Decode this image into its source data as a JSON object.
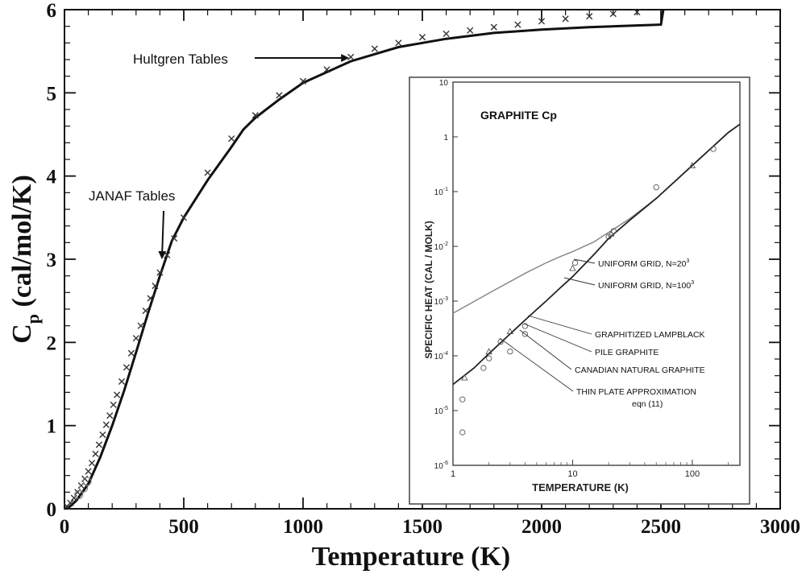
{
  "chart_data": [
    {
      "type": "line",
      "xlabel": "Temperature (K)",
      "ylabel_main": "C",
      "ylabel_sub": "p",
      "ylabel_rest": " (cal/mol/K)",
      "xlim": [
        0,
        3000
      ],
      "ylim": [
        0,
        6
      ],
      "xticks": [
        0,
        500,
        1000,
        1500,
        2000,
        2500,
        3000
      ],
      "yticks": [
        0,
        1,
        2,
        3,
        4,
        5,
        6
      ],
      "grid": false,
      "series": [
        {
          "role": "model-curve",
          "style": "solid",
          "color": "#111111",
          "x": [
            0,
            20,
            50,
            100,
            150,
            200,
            250,
            300,
            350,
            400,
            450,
            500,
            600,
            700,
            750,
            800,
            900,
            1000,
            1200,
            1400,
            1600,
            1800,
            2000,
            2200,
            2400,
            2500,
            2510
          ],
          "y": [
            0,
            0.02,
            0.1,
            0.3,
            0.62,
            1.0,
            1.42,
            1.88,
            2.35,
            2.8,
            3.22,
            3.5,
            3.95,
            4.35,
            4.56,
            4.7,
            4.92,
            5.12,
            5.38,
            5.55,
            5.65,
            5.72,
            5.76,
            5.79,
            5.81,
            5.82,
            6.0
          ]
        },
        {
          "role": "reference-points",
          "style": "x-markers",
          "color": "#333333",
          "x": [
            10,
            25,
            40,
            55,
            70,
            85,
            100,
            115,
            130,
            145,
            160,
            175,
            190,
            205,
            220,
            240,
            260,
            280,
            300,
            320,
            340,
            360,
            380,
            400,
            430,
            460,
            500,
            600,
            700,
            800,
            900,
            1000,
            1100,
            1200,
            1300,
            1400,
            1500,
            1600,
            1700,
            1800,
            1900,
            2000,
            2100,
            2200,
            2300,
            2400
          ],
          "y": [
            0.03,
            0.07,
            0.13,
            0.2,
            0.28,
            0.36,
            0.45,
            0.55,
            0.66,
            0.77,
            0.89,
            1.01,
            1.12,
            1.25,
            1.37,
            1.53,
            1.7,
            1.87,
            2.05,
            2.2,
            2.38,
            2.53,
            2.68,
            2.84,
            3.05,
            3.25,
            3.5,
            4.04,
            4.45,
            4.73,
            4.97,
            5.14,
            5.28,
            5.43,
            5.53,
            5.6,
            5.67,
            5.71,
            5.75,
            5.79,
            5.82,
            5.86,
            5.89,
            5.92,
            5.95,
            5.97
          ]
        }
      ],
      "annotations": [
        {
          "text": "Hultgren Tables",
          "target_x": 1200,
          "target_y": 5.42
        },
        {
          "text": "JANAF Tables",
          "target_x": 410,
          "target_y": 3.0
        }
      ]
    },
    {
      "type": "line",
      "title": "GRAPHITE Cp",
      "xlabel": "TEMPERATURE (K)",
      "ylabel": "SPECIFIC HEAT (CAL / MOLK)",
      "xscale": "log",
      "yscale": "log",
      "xlim": [
        1,
        250
      ],
      "ylim": [
        1e-06,
        10
      ],
      "xticks": [
        {
          "value": 1,
          "label": "1"
        },
        {
          "value": 10,
          "label": "10"
        },
        {
          "value": 100,
          "label": "100"
        }
      ],
      "yticks": [
        {
          "value": 10,
          "base": "10",
          "exp": ""
        },
        {
          "value": 1,
          "base": "1",
          "exp": ""
        },
        {
          "value": 0.1,
          "base": "10",
          "exp": "-1"
        },
        {
          "value": 0.01,
          "base": "10",
          "exp": "-2"
        },
        {
          "value": 0.001,
          "base": "10",
          "exp": "-3"
        },
        {
          "value": 0.0001,
          "base": "10",
          "exp": "-4"
        },
        {
          "value": 1e-05,
          "base": "10",
          "exp": "-5"
        },
        {
          "value": 1e-06,
          "base": "10",
          "exp": "-6"
        }
      ],
      "series": [
        {
          "role": "uniform-grid-20",
          "color": "#888888",
          "x": [
            1,
            2,
            4,
            6,
            8,
            10,
            15,
            20,
            30,
            50,
            100,
            200,
            250
          ],
          "y": [
            0.0006,
            0.0014,
            0.0032,
            0.005,
            0.0066,
            0.008,
            0.012,
            0.018,
            0.032,
            0.075,
            0.3,
            1.2,
            1.7
          ]
        },
        {
          "role": "uniform-grid-100",
          "color": "#222222",
          "x": [
            1,
            1.5,
            2,
            3,
            4,
            5,
            6,
            8,
            10,
            15,
            20,
            30,
            50,
            100,
            200,
            250
          ],
          "y": [
            3e-05,
            6e-05,
            0.00011,
            0.00025,
            0.00045,
            0.0007,
            0.001,
            0.0018,
            0.0028,
            0.007,
            0.014,
            0.03,
            0.075,
            0.3,
            1.2,
            1.7
          ]
        },
        {
          "role": "measured-points",
          "color": "#555555",
          "x": [
            1.2,
            1.2,
            1.25,
            1.8,
            2,
            2,
            2.5,
            3,
            3,
            4,
            4,
            10,
            10.5,
            20,
            21,
            22,
            50,
            100,
            150
          ],
          "y": [
            4e-06,
            1.6e-05,
            4e-05,
            6e-05,
            9e-05,
            0.00012,
            0.00018,
            0.00012,
            0.00028,
            0.00035,
            0.00025,
            0.004,
            0.005,
            0.015,
            0.017,
            0.019,
            0.12,
            0.3,
            0.6
          ]
        }
      ],
      "labels": [
        {
          "text": "UNIFORM GRID, N=20",
          "sup": "3"
        },
        {
          "text": "UNIFORM GRID, N=100",
          "sup": "3"
        },
        {
          "text": "GRAPHITIZED LAMPBLACK",
          "sup": ""
        },
        {
          "text": "PILE GRAPHITE",
          "sup": ""
        },
        {
          "text": "CANADIAN NATURAL GRAPHITE",
          "sup": ""
        },
        {
          "text": "THIN PLATE APPROXIMATION",
          "sup": ""
        },
        {
          "text": "eqn (11)",
          "sup": ""
        }
      ]
    }
  ]
}
